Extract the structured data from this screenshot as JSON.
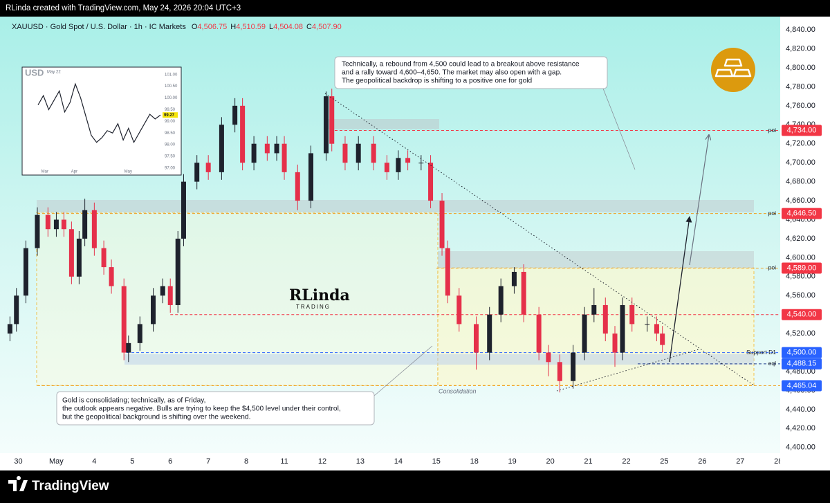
{
  "header": {
    "credit": "RLinda created with TradingView.com, May 24, 2026 20:04 UTC+3"
  },
  "footer": {
    "brand": "TradingView"
  },
  "watermark": {
    "name": "RLinda",
    "sub": "TRADING"
  },
  "annotations": {
    "outlook": [
      "Technically, a rebound from 4,500 could lead to a breakout above resistance",
      "and a rally toward 4,600–4,650. The market may also open with a gap.",
      "The geopolitical backdrop is shifting to a positive one for gold"
    ],
    "consolidating": [
      "Gold is consolidating; technically, as of Friday,",
      "the outlook appears negative. Bulls are trying to keep the $4,500 level under their control,",
      "but the geopolitical background is shifting over the weekend."
    ],
    "zone": "Consolidation"
  },
  "chart_data": [
    {
      "type": "candlestick",
      "title": "XAUUSD · Gold Spot / U.S. Dollar · 1h · IC Markets",
      "ohlc": [
        {
          "key": "O",
          "value": "4,506.75"
        },
        {
          "key": "H",
          "value": "4,510.59"
        },
        {
          "key": "L",
          "value": "4,504.08"
        },
        {
          "key": "C",
          "value": "4,507.90"
        }
      ],
      "up_color": "#1e222d",
      "down_color": "#e5304a",
      "grid": false,
      "x": [
        -0.22,
        -0.05,
        0.2,
        0.5,
        0.78,
        1.0,
        1.2,
        1.4,
        1.6,
        1.75,
        2.0,
        2.25,
        2.45,
        2.78,
        2.9,
        3.2,
        3.55,
        3.8,
        4.0,
        4.2,
        4.35,
        4.7,
        5.0,
        5.35,
        5.7,
        5.9,
        6.2,
        6.55,
        6.8,
        7.0,
        7.35,
        7.7,
        8.1,
        8.25,
        8.6,
        8.95,
        9.35,
        9.7,
        10.0,
        10.25,
        10.6,
        10.85,
        11.15,
        11.3,
        11.6,
        12.05,
        12.4,
        12.7,
        13.05,
        13.3,
        13.7,
        13.95,
        14.25,
        14.6,
        14.9,
        15.15,
        15.45,
        15.7,
        15.9,
        16.15,
        16.55,
        16.8,
        16.95
      ],
      "open": [
        4520,
        4530,
        4560,
        4610,
        4645,
        4630,
        4640,
        4630,
        4580,
        4620,
        4650,
        4610,
        4590,
        4570,
        4500,
        4510,
        4530,
        4560,
        4570,
        4550,
        4620,
        4680,
        4700,
        4690,
        4740,
        4760,
        4700,
        4720,
        4710,
        4720,
        4690,
        4660,
        4710,
        4770,
        4720,
        4700,
        4720,
        4700,
        4690,
        4705,
        4700,
        4700,
        4660,
        4610,
        4560,
        4530,
        4500,
        4540,
        4570,
        4585,
        4540,
        4500,
        4490,
        4470,
        4500,
        4540,
        4550,
        4520,
        4500,
        4550,
        4530,
        4530,
        4520
      ],
      "high": [
        4538,
        4568,
        4618,
        4653,
        4653,
        4648,
        4648,
        4638,
        4628,
        4662,
        4658,
        4618,
        4598,
        4578,
        4518,
        4538,
        4568,
        4578,
        4578,
        4628,
        4688,
        4708,
        4708,
        4748,
        4768,
        4768,
        4728,
        4728,
        4728,
        4728,
        4698,
        4718,
        4775,
        4778,
        4728,
        4728,
        4728,
        4708,
        4713,
        4713,
        4708,
        4708,
        4668,
        4618,
        4568,
        4538,
        4548,
        4578,
        4590,
        4593,
        4548,
        4508,
        4498,
        4508,
        4548,
        4568,
        4558,
        4528,
        4558,
        4558,
        4538,
        4538,
        4528
      ],
      "low": [
        4512,
        4522,
        4552,
        4602,
        4622,
        4622,
        4622,
        4572,
        4572,
        4612,
        4602,
        4582,
        4562,
        4492,
        4490,
        4502,
        4522,
        4552,
        4542,
        4542,
        4612,
        4672,
        4682,
        4682,
        4732,
        4692,
        4692,
        4702,
        4702,
        4682,
        4650,
        4652,
        4702,
        4712,
        4692,
        4692,
        4692,
        4682,
        4682,
        4692,
        4692,
        4652,
        4602,
        4552,
        4522,
        4482,
        4492,
        4532,
        4562,
        4532,
        4492,
        4475,
        4458,
        4462,
        4492,
        4532,
        4512,
        4485,
        4492,
        4522,
        4522,
        4512,
        4500
      ],
      "close": [
        4530,
        4560,
        4610,
        4645,
        4630,
        4640,
        4630,
        4580,
        4620,
        4650,
        4610,
        4590,
        4570,
        4500,
        4510,
        4530,
        4560,
        4570,
        4550,
        4620,
        4680,
        4700,
        4690,
        4740,
        4760,
        4700,
        4720,
        4710,
        4720,
        4690,
        4660,
        4710,
        4770,
        4720,
        4700,
        4720,
        4700,
        4690,
        4705,
        4700,
        4700,
        4660,
        4610,
        4560,
        4530,
        4500,
        4540,
        4570,
        4585,
        4540,
        4500,
        4490,
        4470,
        4500,
        4540,
        4550,
        4520,
        4500,
        4550,
        4530,
        4530,
        4520,
        4508
      ],
      "xlim": [
        -0.3,
        20.05
      ],
      "xticks": [
        {
          "value": 0,
          "label": "30"
        },
        {
          "value": 1,
          "label": "May"
        },
        {
          "value": 2,
          "label": "4"
        },
        {
          "value": 3,
          "label": "5"
        },
        {
          "value": 4,
          "label": "6"
        },
        {
          "value": 5,
          "label": "7"
        },
        {
          "value": 6,
          "label": "8"
        },
        {
          "value": 7,
          "label": "11"
        },
        {
          "value": 8,
          "label": "12"
        },
        {
          "value": 9,
          "label": "13"
        },
        {
          "value": 10,
          "label": "14"
        },
        {
          "value": 11,
          "label": "15"
        },
        {
          "value": 12,
          "label": "18"
        },
        {
          "value": 13,
          "label": "19"
        },
        {
          "value": 14,
          "label": "20"
        },
        {
          "value": 15,
          "label": "21"
        },
        {
          "value": 16,
          "label": "22"
        },
        {
          "value": 17,
          "label": "25"
        },
        {
          "value": 18,
          "label": "26"
        },
        {
          "value": 19,
          "label": "27"
        },
        {
          "value": 20,
          "label": "28"
        }
      ],
      "ylim": [
        4394,
        4851
      ],
      "yticks": [
        {
          "value": 4400,
          "label": "4,400.00"
        },
        {
          "value": 4420,
          "label": "4,420.00"
        },
        {
          "value": 4440,
          "label": "4,440.00"
        },
        {
          "value": 4460,
          "label": "4,460.00"
        },
        {
          "value": 4480,
          "label": "4,480.00"
        },
        {
          "value": 4500,
          "label": "4,500.00"
        },
        {
          "value": 4520,
          "label": "4,520.00"
        },
        {
          "value": 4540,
          "label": "4,540.00"
        },
        {
          "value": 4560,
          "label": "4,560.00"
        },
        {
          "value": 4580,
          "label": "4,580.00"
        },
        {
          "value": 4600,
          "label": "4,600.00"
        },
        {
          "value": 4620,
          "label": "4,620.00"
        },
        {
          "value": 4640,
          "label": "4,640.00"
        },
        {
          "value": 4660,
          "label": "4,660.00"
        },
        {
          "value": 4680,
          "label": "4,680.00"
        },
        {
          "value": 4700,
          "label": "4,700.00"
        },
        {
          "value": 4720,
          "label": "4,720.00"
        },
        {
          "value": 4740,
          "label": "4,740.00"
        },
        {
          "value": 4760,
          "label": "4,760.00"
        },
        {
          "value": 4780,
          "label": "4,780.00"
        },
        {
          "value": 4800,
          "label": "4,800.00"
        },
        {
          "value": 4820,
          "label": "4,820.00"
        },
        {
          "value": 4840,
          "label": "4,840.00"
        }
      ],
      "levels": [
        {
          "value": 4734,
          "label": "4,734.00",
          "color": "#f23645",
          "line_color": "#f23645",
          "start": 8.2,
          "note": "poi"
        },
        {
          "value": 4646.5,
          "label": "4,646.50",
          "color": "#f23645",
          "line_color": "#f0a020",
          "start": 0.5,
          "note": "poi"
        },
        {
          "value": 4589,
          "label": "4,589.00",
          "color": "#f23645",
          "line_color": "#f0a020",
          "start": 11.0,
          "note": "poi"
        },
        {
          "value": 4540,
          "label": "4,540.00",
          "color": "#f23645",
          "line_color": "#f23645",
          "start": 4.0
        },
        {
          "value": 4500,
          "label": "4,500.00",
          "color": "#2962ff",
          "line_color": "#2962ff",
          "start": 2.85,
          "note": "Support D1"
        },
        {
          "value": 4488.15,
          "label": "4,488.15",
          "color": "#2962ff",
          "line_color": "#1e3a8a",
          "start": 16.3,
          "note": "eql"
        },
        {
          "value": 4465.04,
          "label": "4,465.04",
          "color": "#2962ff",
          "line_color": "#f0a020",
          "start": 0.5
        }
      ]
    },
    {
      "type": "line",
      "title": "USD",
      "subtitle": "May 22",
      "color": "#1e222d",
      "values": [
        99.7,
        100.1,
        99.5,
        99.9,
        100.3,
        99.4,
        99.8,
        100.6,
        100.0,
        99.2,
        98.4,
        98.1,
        98.3,
        98.6,
        98.5,
        98.9,
        98.2,
        98.7,
        98.1,
        98.5,
        98.9,
        99.3,
        99.1,
        99.27
      ],
      "last_label": "99.27",
      "xlim": [
        0,
        23
      ],
      "xticks": [
        {
          "value": 0.6,
          "label": "Mar"
        },
        {
          "value": 6.2,
          "label": "Apr"
        },
        {
          "value": 16.2,
          "label": "May"
        }
      ],
      "ylim": [
        96.79,
        101.2
      ],
      "yticks": [
        {
          "value": 97,
          "label": "97.00"
        },
        {
          "value": 97.5,
          "label": "97.50"
        },
        {
          "value": 98,
          "label": "98.00"
        },
        {
          "value": 98.5,
          "label": "98.50"
        },
        {
          "value": 99,
          "label": "99.00"
        },
        {
          "value": 99.5,
          "label": "99.50"
        },
        {
          "value": 100,
          "label": "100.00"
        },
        {
          "value": 100.5,
          "label": "100.50"
        },
        {
          "value": 101,
          "label": "101.00"
        }
      ]
    }
  ]
}
